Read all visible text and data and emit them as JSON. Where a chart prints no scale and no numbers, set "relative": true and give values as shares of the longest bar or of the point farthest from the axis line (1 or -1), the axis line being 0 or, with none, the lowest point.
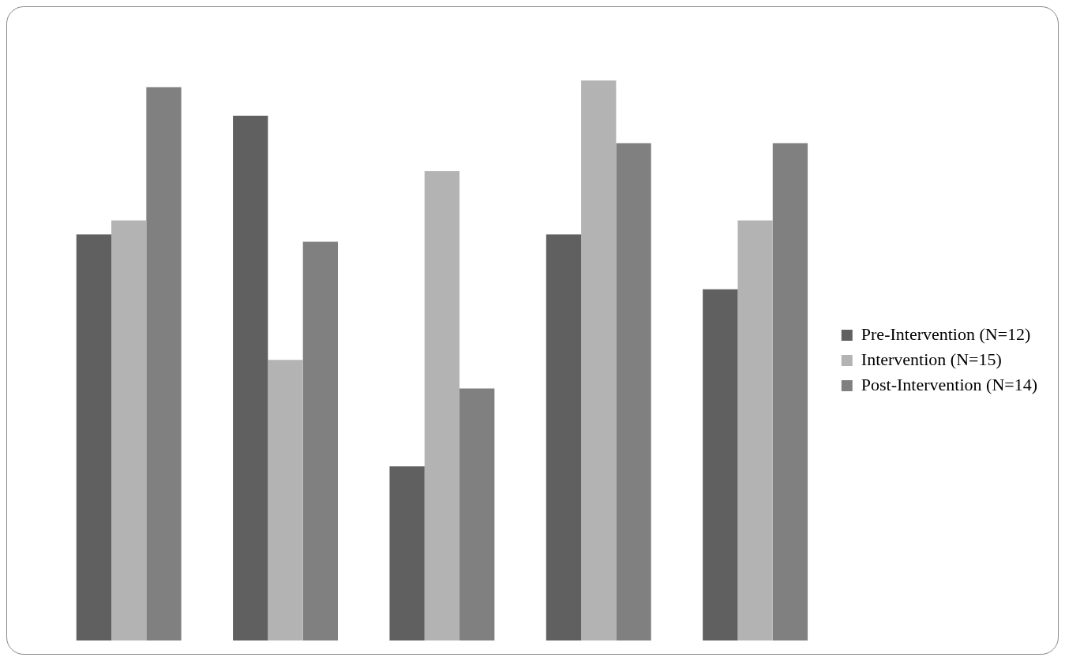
{
  "chart_data": {
    "type": "bar",
    "relative": true,
    "categories": [
      null,
      null,
      null,
      null,
      null
    ],
    "legend": "right",
    "series": [
      {
        "name": "Pre-Intervention (N=12)",
        "color": "#606060",
        "values": [
          0.725,
          0.937,
          0.311,
          0.725,
          0.627
        ]
      },
      {
        "name": "Intervention (N=15)",
        "color": "#b3b3b3",
        "values": [
          0.75,
          0.501,
          0.838,
          1,
          0.75
        ]
      },
      {
        "name": "Post-Intervention (N=14)",
        "color": "#808080",
        "values": [
          0.988,
          0.712,
          0.45,
          0.888,
          0.888
        ]
      }
    ]
  }
}
